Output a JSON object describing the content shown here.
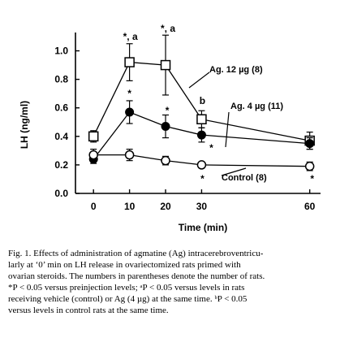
{
  "chart_data": {
    "type": "line",
    "xlabel": "Time (min)",
    "ylabel": "LH (ng/ml)",
    "xlim": [
      -5,
      63
    ],
    "ylim": [
      0.0,
      1.1
    ],
    "x_ticks": [
      0,
      10,
      20,
      30,
      60
    ],
    "x_tick_labels": [
      "0",
      "10",
      "20",
      "30",
      "60"
    ],
    "y_ticks": [
      0.0,
      0.2,
      0.4,
      0.6,
      0.8,
      1.0
    ],
    "y_tick_labels": [
      "0.0",
      "0.2",
      "0.4",
      "0.6",
      "0.8",
      "1.0"
    ],
    "grid": false,
    "series": [
      {
        "name": "Ag. 12 µg (8)",
        "marker": "open-square",
        "x": [
          0,
          10,
          20,
          30,
          60
        ],
        "y": [
          0.4,
          0.92,
          0.9,
          0.52,
          0.37
        ],
        "error": [
          0.04,
          0.13,
          0.21,
          0.06,
          0.06
        ],
        "annotations": [
          "",
          "*, a",
          "*, a",
          "b",
          ""
        ]
      },
      {
        "name": "Ag. 4 µg (11)",
        "marker": "filled-circle",
        "x": [
          0,
          10,
          20,
          30,
          60
        ],
        "y": [
          0.24,
          0.57,
          0.47,
          0.41,
          0.35
        ],
        "error": [
          0.03,
          0.08,
          0.08,
          0.05,
          0.04
        ],
        "annotations": [
          "",
          "*",
          "*",
          "*",
          ""
        ]
      },
      {
        "name": "Control (8)",
        "marker": "open-circle",
        "x": [
          0,
          10,
          20,
          30,
          60
        ],
        "y": [
          0.27,
          0.27,
          0.23,
          0.2,
          0.19
        ],
        "error": [
          0.04,
          0.04,
          0.03,
          0.02,
          0.03
        ],
        "annotations": [
          "",
          "",
          "",
          "*",
          "*"
        ]
      }
    ]
  },
  "caption": {
    "lines": [
      "Fig. 1. Effects of administration of agmatine (Ag) intracerebroventricu-",
      "larly at ‘0’ min on LH release in ovariectomized rats primed with",
      "ovarian steroids. The numbers in parentheses denote the number of rats.",
      "*P < 0.05 versus preinjection levels; ᵃP < 0.05 versus levels in rats",
      "receiving vehicle (control) or Ag (4 µg) at the same time. ᵇP < 0.05",
      "versus levels in control rats at the same time."
    ]
  }
}
